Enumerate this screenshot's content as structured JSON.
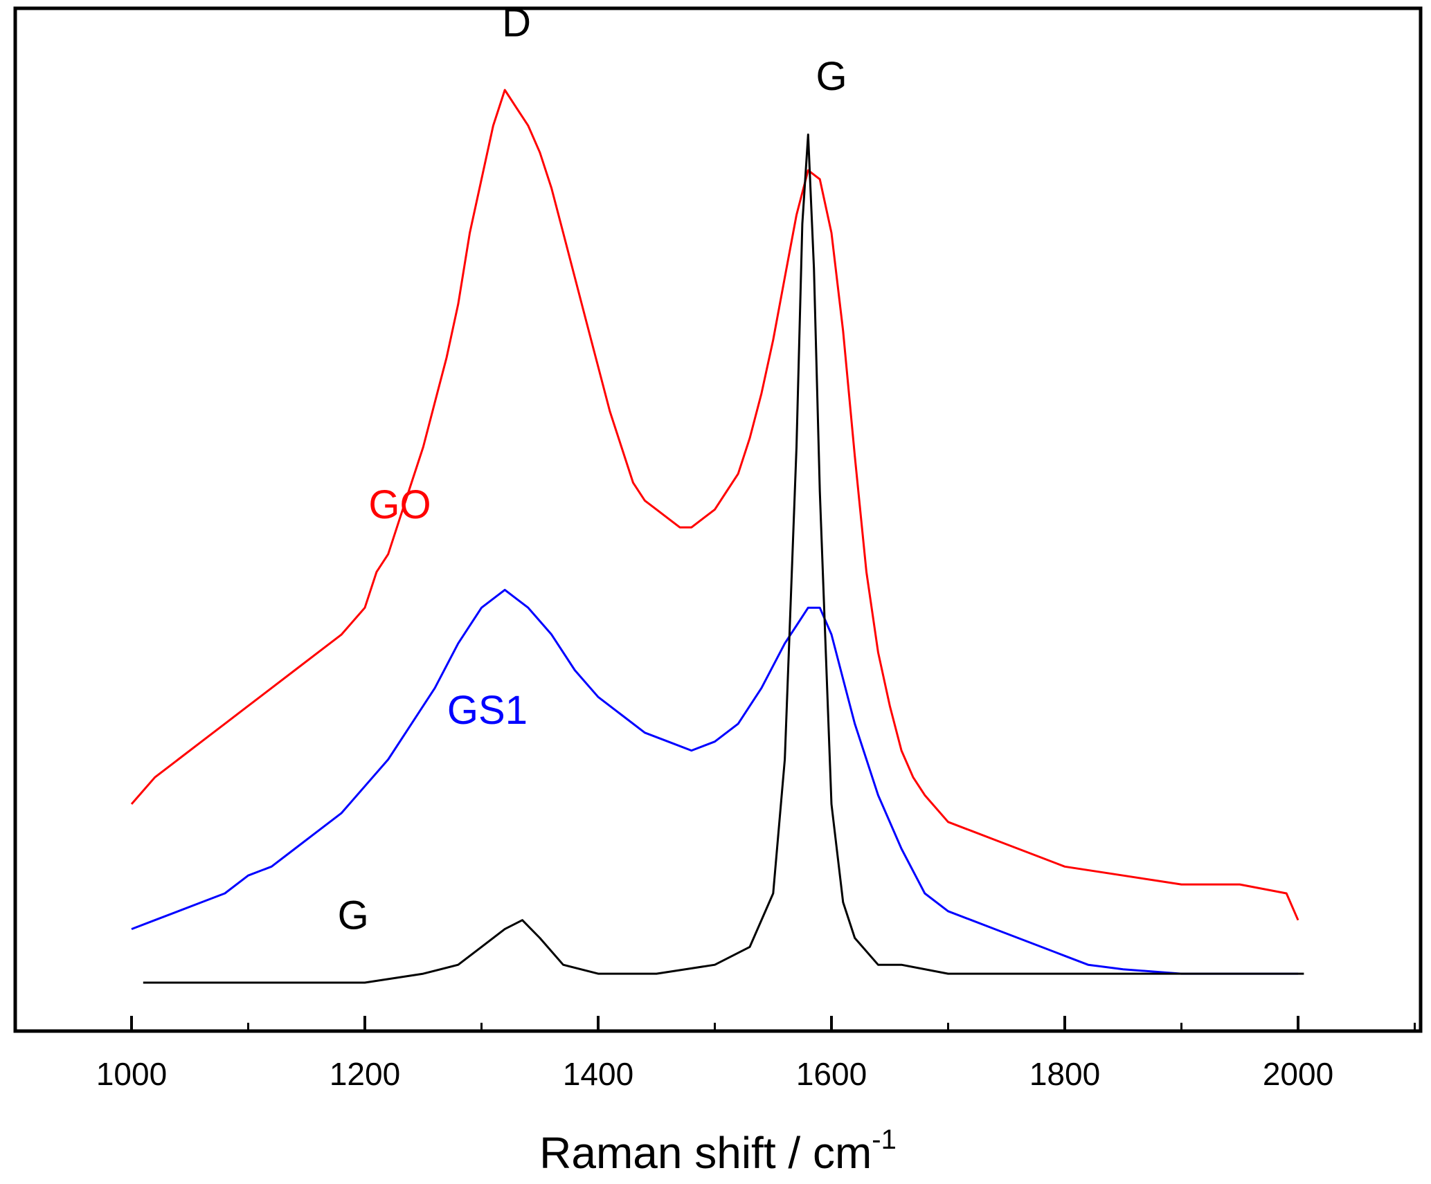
{
  "chart_data": {
    "type": "line",
    "title": "",
    "xlabel": "Raman shift / cm",
    "xlabel_superscript": "-1",
    "ylabel": "",
    "xlim": [
      900,
      2100
    ],
    "ylim": [
      0,
      1.1
    ],
    "x_ticks": [
      1000,
      1200,
      1400,
      1600,
      1800,
      2000
    ],
    "grid": false,
    "legend": "none",
    "series": [
      {
        "name": "GO",
        "color": "#ff0000",
        "x": [
          1000,
          1020,
          1040,
          1060,
          1080,
          1100,
          1120,
          1140,
          1160,
          1180,
          1200,
          1210,
          1220,
          1230,
          1240,
          1250,
          1260,
          1270,
          1280,
          1290,
          1300,
          1310,
          1320,
          1330,
          1340,
          1350,
          1360,
          1370,
          1380,
          1390,
          1400,
          1410,
          1420,
          1430,
          1440,
          1450,
          1460,
          1470,
          1480,
          1490,
          1500,
          1510,
          1520,
          1530,
          1540,
          1550,
          1560,
          1570,
          1580,
          1590,
          1600,
          1610,
          1620,
          1630,
          1640,
          1650,
          1660,
          1670,
          1680,
          1700,
          1720,
          1740,
          1760,
          1780,
          1800,
          1850,
          1900,
          1950,
          1990,
          2000
        ],
        "y": [
          0.2,
          0.23,
          0.25,
          0.27,
          0.29,
          0.31,
          0.33,
          0.35,
          0.37,
          0.39,
          0.42,
          0.46,
          0.48,
          0.52,
          0.56,
          0.6,
          0.65,
          0.7,
          0.76,
          0.84,
          0.9,
          0.96,
          1.0,
          0.98,
          0.96,
          0.93,
          0.89,
          0.84,
          0.79,
          0.74,
          0.69,
          0.64,
          0.6,
          0.56,
          0.54,
          0.53,
          0.52,
          0.51,
          0.51,
          0.52,
          0.53,
          0.55,
          0.57,
          0.61,
          0.66,
          0.72,
          0.79,
          0.86,
          0.91,
          0.9,
          0.84,
          0.73,
          0.59,
          0.46,
          0.37,
          0.31,
          0.26,
          0.23,
          0.21,
          0.18,
          0.17,
          0.16,
          0.15,
          0.14,
          0.13,
          0.12,
          0.11,
          0.11,
          0.1,
          0.07
        ]
      },
      {
        "name": "GS1",
        "color": "#0000ff",
        "x": [
          1000,
          1020,
          1040,
          1060,
          1080,
          1100,
          1120,
          1140,
          1160,
          1180,
          1200,
          1220,
          1240,
          1260,
          1280,
          1300,
          1320,
          1330,
          1340,
          1360,
          1380,
          1400,
          1420,
          1440,
          1460,
          1480,
          1500,
          1520,
          1540,
          1560,
          1570,
          1580,
          1590,
          1600,
          1610,
          1620,
          1640,
          1660,
          1680,
          1700,
          1720,
          1740,
          1760,
          1780,
          1800,
          1820,
          1850,
          1900,
          1950,
          2000
        ],
        "y": [
          0.06,
          0.07,
          0.08,
          0.09,
          0.1,
          0.12,
          0.13,
          0.15,
          0.17,
          0.19,
          0.22,
          0.25,
          0.29,
          0.33,
          0.38,
          0.42,
          0.44,
          0.43,
          0.42,
          0.39,
          0.35,
          0.32,
          0.3,
          0.28,
          0.27,
          0.26,
          0.27,
          0.29,
          0.33,
          0.38,
          0.4,
          0.42,
          0.42,
          0.39,
          0.34,
          0.29,
          0.21,
          0.15,
          0.1,
          0.08,
          0.07,
          0.06,
          0.05,
          0.04,
          0.03,
          0.02,
          0.015,
          0.01,
          0.01,
          0.01
        ]
      },
      {
        "name": "G",
        "color": "#000000",
        "x": [
          1010,
          1100,
          1200,
          1250,
          1280,
          1300,
          1320,
          1335,
          1350,
          1370,
          1400,
          1450,
          1500,
          1530,
          1550,
          1560,
          1570,
          1575,
          1580,
          1585,
          1590,
          1600,
          1610,
          1620,
          1640,
          1660,
          1700,
          1800,
          1900,
          2005
        ],
        "y": [
          0.0,
          0.0,
          0.0,
          0.01,
          0.02,
          0.04,
          0.06,
          0.07,
          0.05,
          0.02,
          0.01,
          0.01,
          0.02,
          0.04,
          0.1,
          0.25,
          0.6,
          0.85,
          0.95,
          0.8,
          0.55,
          0.2,
          0.09,
          0.05,
          0.02,
          0.02,
          0.01,
          0.01,
          0.01,
          0.01
        ]
      }
    ],
    "annotations": [
      {
        "text": "D",
        "x": 1330,
        "y": 1.06,
        "color": "#000000"
      },
      {
        "text": "G",
        "x": 1600,
        "y": 1.0,
        "color": "#000000"
      },
      {
        "text": "GO",
        "x": 1230,
        "y": 0.52,
        "color": "#ff0000"
      },
      {
        "text": "GS1",
        "x": 1305,
        "y": 0.29,
        "color": "#0000ff"
      },
      {
        "text": "G",
        "x": 1190,
        "y": 0.06,
        "color": "#000000"
      }
    ]
  }
}
